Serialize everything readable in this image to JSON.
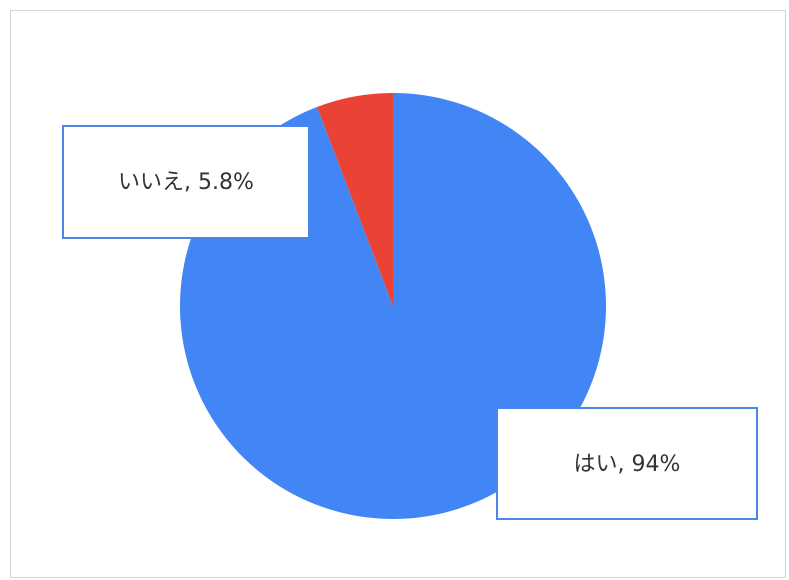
{
  "chart_data": {
    "type": "pie",
    "title": "",
    "slices": [
      {
        "label": "はい",
        "value": 94.2,
        "display": "はい, 94%",
        "color": "#4285F4"
      },
      {
        "label": "いいえ",
        "value": 5.8,
        "display": "いいえ, 5.8%",
        "color": "#EA4335"
      }
    ],
    "legend": "none",
    "label_style": "callout"
  },
  "colors": {
    "callout_border": "#4A86E8",
    "frame_border": "#d6d6d6"
  }
}
